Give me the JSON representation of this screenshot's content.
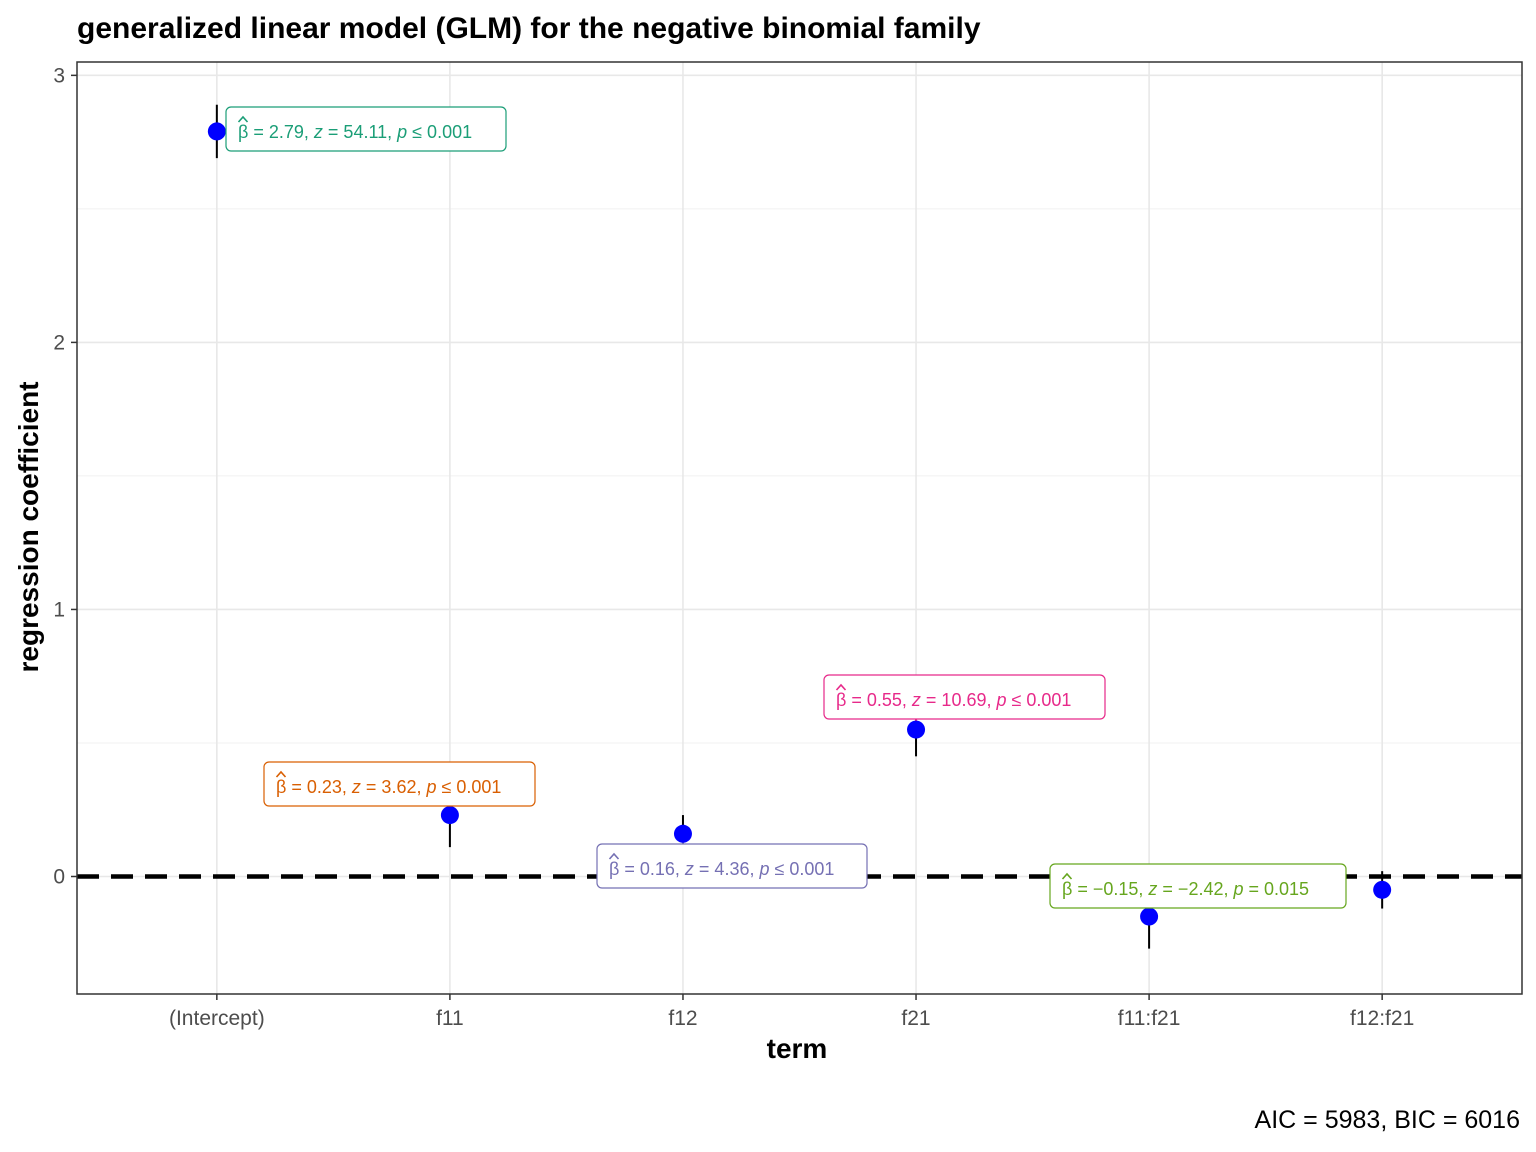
{
  "chart_data": {
    "type": "scatter",
    "title": "generalized linear model (GLM) for the negative binomial family",
    "xlabel": "term",
    "ylabel": "regression coefficient",
    "caption": "AIC = 5983, BIC = 6016",
    "categories": [
      "(Intercept)",
      "f11",
      "f12",
      "f21",
      "f11:f21",
      "f12:f21"
    ],
    "ylim": [
      -0.44,
      3.05
    ],
    "yticks": [
      0,
      1,
      2,
      3
    ],
    "grid": true,
    "reference_line": 0,
    "point_color": "#0000ff",
    "points": [
      {
        "term": "(Intercept)",
        "estimate": 2.79,
        "ci_low": 2.69,
        "ci_high": 2.89,
        "label": {
          "beta": "2.79",
          "z": "54.11",
          "p": "0.001",
          "p_rel": "≤",
          "color": "#1b9e77"
        }
      },
      {
        "term": "f11",
        "estimate": 0.23,
        "ci_low": 0.11,
        "ci_high": 0.35,
        "label": {
          "beta": "0.23",
          "z": "3.62",
          "p": "0.001",
          "p_rel": "≤",
          "color": "#d95f02"
        }
      },
      {
        "term": "f12",
        "estimate": 0.16,
        "ci_low": 0.09,
        "ci_high": 0.23,
        "label": {
          "beta": "0.16",
          "z": "4.36",
          "p": "0.001",
          "p_rel": "≤",
          "color": "#7570b3"
        }
      },
      {
        "term": "f21",
        "estimate": 0.55,
        "ci_low": 0.45,
        "ci_high": 0.65,
        "label": {
          "beta": "0.55",
          "z": "10.69",
          "p": "0.001",
          "p_rel": "≤",
          "color": "#e7298a"
        }
      },
      {
        "term": "f11:f21",
        "estimate": -0.15,
        "ci_low": -0.27,
        "ci_high": -0.03,
        "label": {
          "beta": "−0.15",
          "z": "−2.42",
          "p": "0.015",
          "p_rel": "=",
          "color": "#66a61e"
        }
      },
      {
        "term": "f12:f21",
        "estimate": -0.05,
        "ci_low": -0.12,
        "ci_high": 0.02,
        "label": null
      }
    ]
  }
}
